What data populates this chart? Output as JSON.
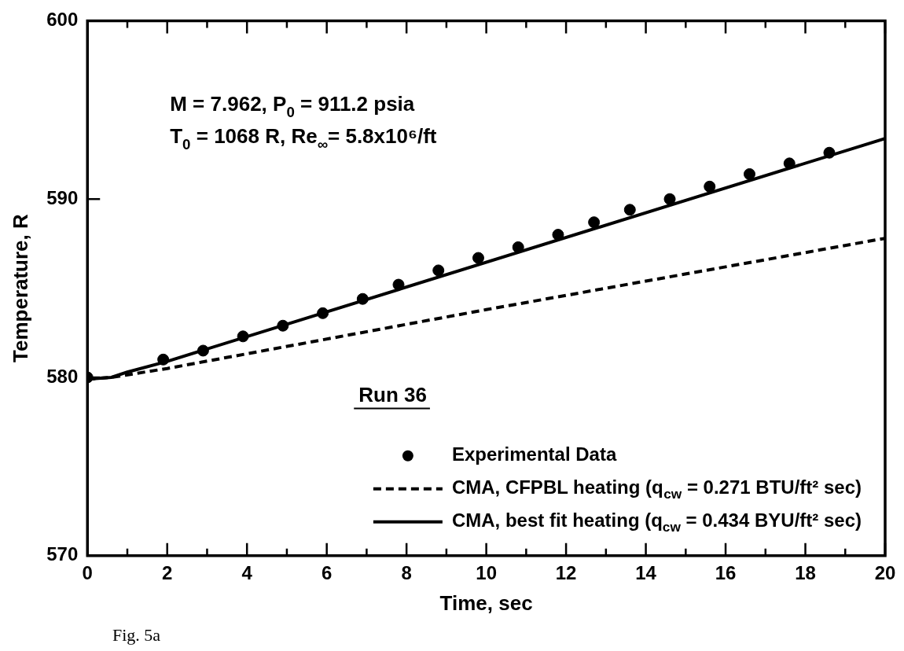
{
  "chart_data": {
    "type": "line",
    "xlabel": "Time, sec",
    "ylabel": "Temperature, R",
    "xlim": [
      0,
      20
    ],
    "ylim": [
      570,
      600
    ],
    "xticks": [
      0,
      {
        "value": 1,
        "label": null
      },
      2,
      {
        "value": 3,
        "label": null
      },
      4,
      {
        "value": 5,
        "label": null
      },
      6,
      {
        "value": 7,
        "label": null
      },
      8,
      {
        "value": 9,
        "label": null
      },
      10,
      {
        "value": 11,
        "label": null
      },
      12,
      {
        "value": 13,
        "label": null
      },
      14,
      {
        "value": 15,
        "label": null
      },
      16,
      {
        "value": 17,
        "label": null
      },
      18,
      {
        "value": 19,
        "label": null
      },
      20
    ],
    "yticks": [
      570,
      580,
      590,
      600
    ],
    "legend": "bottom right",
    "series": [
      {
        "name": "Experimental Data",
        "type": "scatter",
        "marker": "circle",
        "color": "#000000",
        "x": [
          0,
          1.9,
          2.9,
          3.9,
          4.9,
          5.9,
          6.9,
          7.8,
          8.8,
          9.8,
          10.8,
          11.8,
          12.7,
          13.6,
          14.6,
          15.6,
          16.6,
          17.6,
          18.6
        ],
        "values": [
          580.0,
          581.0,
          581.5,
          582.3,
          582.9,
          583.6,
          584.4,
          585.2,
          586.0,
          586.7,
          587.3,
          588.0,
          588.7,
          589.4,
          590.0,
          590.7,
          591.4,
          592.0,
          592.6
        ]
      },
      {
        "name": "CMA, CFPBL heating (q$_{cw}$ = 0.271 BTU/ft² sec)",
        "type": "line",
        "line_style": "dashed",
        "color": "#000000",
        "x": [
          0,
          0.6,
          2,
          10,
          20
        ],
        "values": [
          579.9,
          580.0,
          580.5,
          583.8,
          587.8
        ]
      },
      {
        "name": "CMA, best fit heating (q$_{cw}$ = 0.434 BYU/ft² sec)",
        "type": "line",
        "line_style": "solid",
        "color": "#000000",
        "x": [
          0,
          0.6,
          1,
          2,
          20
        ],
        "values": [
          579.9,
          580.0,
          580.3,
          580.9,
          593.4
        ]
      }
    ],
    "annotations": [
      "M = 7.962, P$_{0}$ = 911.2 psia",
      "T$_{0}$ = 1068 R, Re$_{∞}$= 5.8x10⁶/ft",
      "Run 36",
      "Fig. 5a"
    ]
  }
}
